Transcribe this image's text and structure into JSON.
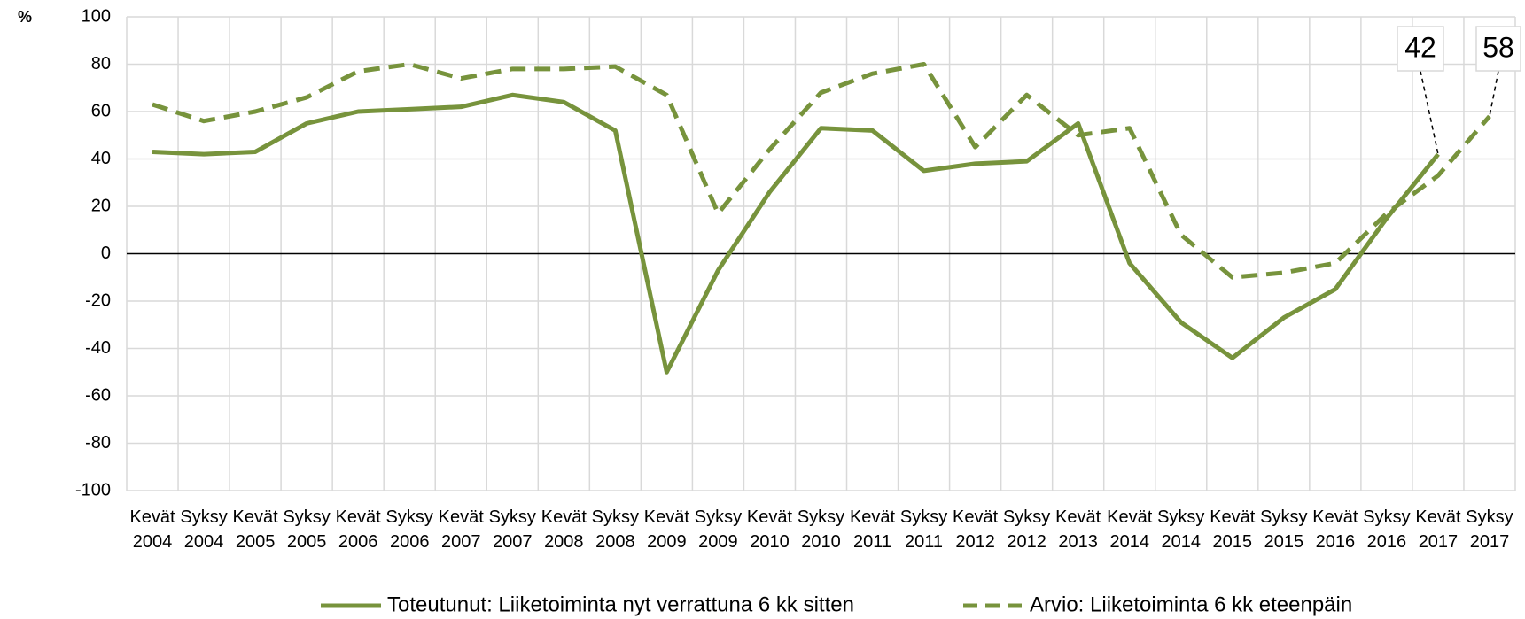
{
  "chart_data": {
    "type": "line",
    "y_label": "%",
    "categories": [
      "Kevät 2004",
      "Syksy 2004",
      "Kevät 2005",
      "Syksy 2005",
      "Kevät 2006",
      "Syksy 2006",
      "Kevät 2007",
      "Syksy 2007",
      "Kevät 2008",
      "Syksy 2008",
      "Kevät 2009",
      "Syksy 2009",
      "Kevät 2010",
      "Syksy 2010",
      "Kevät 2011",
      "Syksy 2011",
      "Kevät 2012",
      "Syksy 2012",
      "Kevät 2013",
      "Kevät 2014",
      "Syksy 2014",
      "Kevät 2015",
      "Syksy 2015",
      "Kevät 2016",
      "Syksy 2016",
      "Kevät 2017",
      "Syksy 2017"
    ],
    "series": [
      {
        "name": "Toteutunut: Liiketoiminta nyt verrattuna 6 kk sitten",
        "color": "#77933c",
        "dash": false,
        "values": [
          43,
          42,
          43,
          55,
          60,
          61,
          62,
          67,
          64,
          52,
          -50,
          -7,
          26,
          53,
          52,
          35,
          38,
          39,
          55,
          -4,
          -29,
          -44,
          -27,
          -15,
          15,
          42,
          null
        ]
      },
      {
        "name": "Arvio: Liiketoiminta 6 kk eteenpäin",
        "color": "#77933c",
        "dash": true,
        "values": [
          63,
          56,
          60,
          66,
          77,
          80,
          74,
          78,
          78,
          79,
          67,
          17,
          44,
          68,
          76,
          80,
          45,
          67,
          50,
          53,
          8,
          -10,
          -8,
          -4,
          17,
          33,
          58
        ]
      }
    ],
    "ylim": [
      -100,
      100
    ],
    "yticks": [
      -100,
      -80,
      -60,
      -40,
      -20,
      0,
      20,
      40,
      60,
      80,
      100
    ],
    "grid": true
  }
}
